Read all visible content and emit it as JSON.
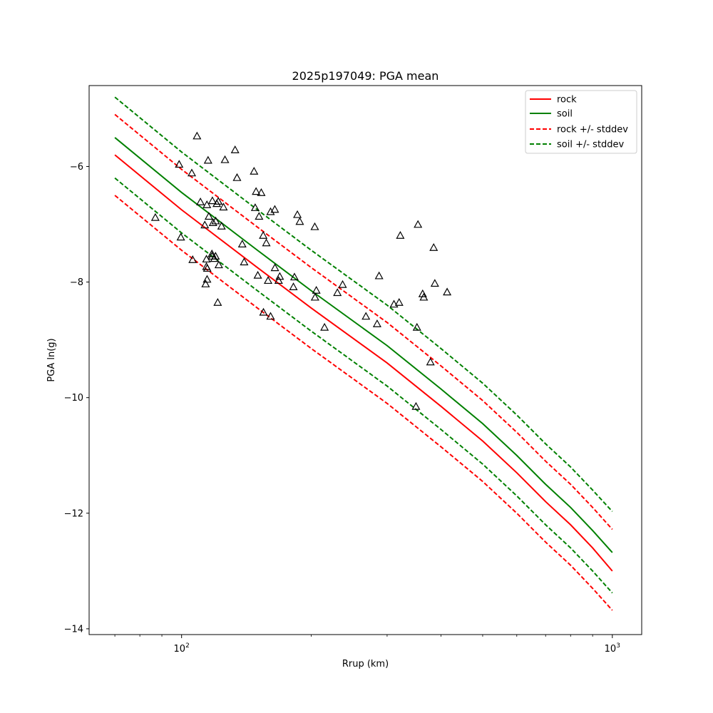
{
  "chart_data": {
    "type": "line",
    "title": "2025p197049: PGA mean",
    "xlabel": "Rrup (km)",
    "ylabel": "PGA ln(g)",
    "x_scale": "log",
    "xlim": [
      61,
      1170
    ],
    "ylim": [
      -14.1,
      -4.6
    ],
    "x_major_ticks": [
      {
        "value": 100,
        "label": "10",
        "sup": "2"
      },
      {
        "value": 1000,
        "label": "10",
        "sup": "3"
      }
    ],
    "y_ticks": [
      -14,
      -12,
      -10,
      -8,
      -6
    ],
    "grid": false,
    "legend_position": "top-right",
    "colors": {
      "rock": "#ff0000",
      "soil": "#008000",
      "observations": "#000000"
    },
    "legend": [
      {
        "label": "rock",
        "color": "#ff0000",
        "style": "solid"
      },
      {
        "label": "soil",
        "color": "#008000",
        "style": "solid"
      },
      {
        "label": "rock +/- stddev",
        "color": "#ff0000",
        "style": "dashed"
      },
      {
        "label": "soil +/- stddev",
        "color": "#008000",
        "style": "dashed"
      }
    ],
    "series": [
      {
        "name": "rock",
        "color": "#ff0000",
        "style": "solid",
        "x": [
          70,
          100,
          150,
          200,
          300,
          400,
          500,
          600,
          700,
          800,
          900,
          1000
        ],
        "y": [
          -5.8,
          -6.75,
          -7.75,
          -8.45,
          -9.4,
          -10.15,
          -10.75,
          -11.3,
          -11.8,
          -12.2,
          -12.6,
          -13.0
        ]
      },
      {
        "name": "soil",
        "color": "#008000",
        "style": "solid",
        "x": [
          70,
          100,
          150,
          200,
          300,
          400,
          500,
          600,
          700,
          800,
          900,
          1000
        ],
        "y": [
          -5.5,
          -6.45,
          -7.45,
          -8.15,
          -9.1,
          -9.85,
          -10.45,
          -11.0,
          -11.5,
          -11.9,
          -12.3,
          -12.68
        ]
      },
      {
        "name": "rock +/- stddev",
        "color": "#ff0000",
        "style": "dashed",
        "x": [
          70,
          100,
          150,
          200,
          300,
          400,
          500,
          600,
          700,
          800,
          900,
          1000
        ],
        "y": [
          -5.1,
          -6.05,
          -7.05,
          -7.75,
          -8.7,
          -9.45,
          -10.05,
          -10.6,
          -11.1,
          -11.5,
          -11.9,
          -12.28
        ]
      },
      {
        "name": "rock +/- stddev",
        "color": "#ff0000",
        "style": "dashed",
        "x": [
          70,
          100,
          150,
          200,
          300,
          400,
          500,
          600,
          700,
          800,
          900,
          1000
        ],
        "y": [
          -6.5,
          -7.45,
          -8.45,
          -9.15,
          -10.1,
          -10.85,
          -11.45,
          -12.0,
          -12.5,
          -12.9,
          -13.3,
          -13.68
        ]
      },
      {
        "name": "soil +/- stddev",
        "color": "#008000",
        "style": "dashed",
        "x": [
          70,
          100,
          150,
          200,
          300,
          400,
          500,
          600,
          700,
          800,
          900,
          1000
        ],
        "y": [
          -4.8,
          -5.75,
          -6.75,
          -7.45,
          -8.4,
          -9.15,
          -9.75,
          -10.3,
          -10.8,
          -11.2,
          -11.6,
          -11.97
        ]
      },
      {
        "name": "soil +/- stddev",
        "color": "#008000",
        "style": "dashed",
        "x": [
          70,
          100,
          150,
          200,
          300,
          400,
          500,
          600,
          700,
          800,
          900,
          1000
        ],
        "y": [
          -6.2,
          -7.15,
          -8.15,
          -8.85,
          -9.8,
          -10.55,
          -11.15,
          -11.7,
          -12.2,
          -12.6,
          -13.0,
          -13.38
        ]
      }
    ],
    "observations": {
      "marker": "triangle-open",
      "color": "#000000",
      "points": [
        [
          108.6,
          -5.47
        ],
        [
          98.7,
          -5.96
        ],
        [
          105.6,
          -6.11
        ],
        [
          115.2,
          -5.89
        ],
        [
          121.7,
          -6.6
        ],
        [
          126.1,
          -5.88
        ],
        [
          114.5,
          -6.66
        ],
        [
          117.9,
          -6.59
        ],
        [
          120.0,
          -6.94
        ],
        [
          120.7,
          -6.64
        ],
        [
          125.1,
          -6.7
        ],
        [
          110.6,
          -6.61
        ],
        [
          118.3,
          -6.97
        ],
        [
          123.8,
          -7.03
        ],
        [
          133.1,
          -5.71
        ],
        [
          134.5,
          -6.19
        ],
        [
          147.3,
          -6.08
        ],
        [
          148.9,
          -6.43
        ],
        [
          153.1,
          -6.45
        ],
        [
          148.2,
          -6.71
        ],
        [
          164.6,
          -6.74
        ],
        [
          160.9,
          -6.78
        ],
        [
          151.3,
          -6.86
        ],
        [
          86.9,
          -6.88
        ],
        [
          113.2,
          -7.01
        ],
        [
          115.7,
          -6.86
        ],
        [
          99.6,
          -7.22
        ],
        [
          106.1,
          -7.61
        ],
        [
          117.6,
          -7.51
        ],
        [
          117.7,
          -7.55
        ],
        [
          119.9,
          -7.55
        ],
        [
          119.1,
          -7.59
        ],
        [
          114.2,
          -7.6
        ],
        [
          114.2,
          -7.73
        ],
        [
          114.7,
          -7.76
        ],
        [
          122.0,
          -7.7
        ],
        [
          114.6,
          -7.95
        ],
        [
          113.7,
          -8.03
        ],
        [
          121.3,
          -8.35
        ],
        [
          138.3,
          -7.34
        ],
        [
          139.7,
          -7.65
        ],
        [
          154.7,
          -7.19
        ],
        [
          157.3,
          -7.32
        ],
        [
          164.7,
          -7.75
        ],
        [
          150.3,
          -7.88
        ],
        [
          168.0,
          -7.97
        ],
        [
          169.0,
          -7.9
        ],
        [
          182.8,
          -7.91
        ],
        [
          158.8,
          -7.97
        ],
        [
          181.8,
          -8.08
        ],
        [
          185.7,
          -6.83
        ],
        [
          188.1,
          -6.95
        ],
        [
          203.8,
          -7.04
        ],
        [
          154.9,
          -8.52
        ],
        [
          160.9,
          -8.59
        ],
        [
          204.1,
          -8.26
        ],
        [
          205.5,
          -8.14
        ],
        [
          230.0,
          -8.18
        ],
        [
          236.5,
          -8.04
        ],
        [
          214.7,
          -8.78
        ],
        [
          267.9,
          -8.59
        ],
        [
          284.4,
          -8.72
        ],
        [
          287.4,
          -7.89
        ],
        [
          311.2,
          -8.38
        ],
        [
          319.9,
          -8.35
        ],
        [
          321.9,
          -7.19
        ],
        [
          351.9,
          -8.78
        ],
        [
          350.1,
          -10.15
        ],
        [
          353.8,
          -7.0
        ],
        [
          362.8,
          -8.2
        ],
        [
          365.0,
          -8.26
        ],
        [
          378.2,
          -9.38
        ],
        [
          384.8,
          -7.4
        ],
        [
          387.2,
          -8.02
        ],
        [
          413.5,
          -8.17
        ]
      ]
    }
  }
}
